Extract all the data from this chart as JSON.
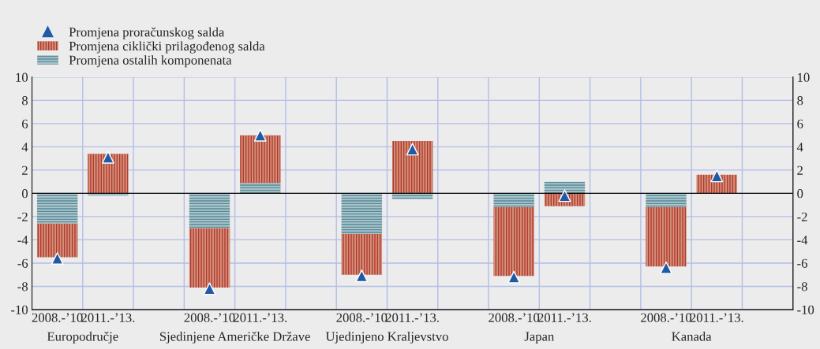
{
  "chart_data": {
    "type": "bar",
    "stacked": true,
    "categories": [
      "2008.-’10",
      "2011.-’13.",
      null,
      "2008.-’10",
      "2011.-’13.",
      null,
      "2008.-’10",
      "2011.-’13.",
      null,
      "2008.-’10",
      "2011.-’13.",
      null,
      "2008.-’10",
      "2011.-’13.",
      null
    ],
    "series": [
      {
        "name": "Promjena proračunskog salda",
        "type": "scatter",
        "marker": "triangle",
        "color": "#1f5aa6",
        "values": [
          -5.6,
          3.1,
          null,
          -8.2,
          5.0,
          null,
          -7.1,
          3.8,
          null,
          -7.2,
          -0.2,
          null,
          -6.4,
          1.5,
          null
        ]
      },
      {
        "name": "Promjena ostalih komponenata",
        "color": "#a8c4cc",
        "values": [
          -2.6,
          -0.2,
          null,
          -3.0,
          0.9,
          null,
          -3.5,
          -0.5,
          null,
          -1.2,
          1.0,
          null,
          -1.2,
          0,
          null
        ]
      },
      {
        "name": "Promjena ciklički prilagođenog salda",
        "color": "#d4907a",
        "values": [
          -2.9,
          3.4,
          null,
          -5.1,
          4.1,
          null,
          -3.5,
          4.5,
          null,
          -5.9,
          -1.1,
          null,
          -5.1,
          1.6,
          null
        ]
      }
    ],
    "annotations": [
      "Europodručje",
      "Sjedinjene Američke Države",
      "Ujedinjeno Kraljevstvo",
      "Japan",
      "Kanada"
    ],
    "ylim": [
      -10,
      10
    ],
    "yticks": [
      -10,
      -8,
      -6,
      -4,
      -2,
      0,
      2,
      4,
      6,
      8,
      10
    ],
    "y2lim": [
      -10,
      10
    ],
    "y2ticks": [
      -10,
      -8,
      -6,
      -4,
      -2,
      0,
      2,
      4,
      6,
      8,
      10
    ],
    "grid": true,
    "legend": "top left"
  }
}
